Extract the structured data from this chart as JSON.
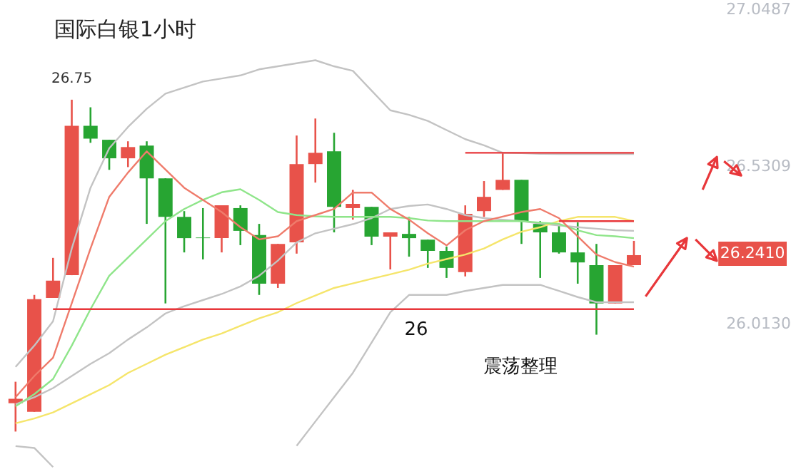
{
  "chart_data": {
    "type": "candlestick",
    "title": "国际白银1小时",
    "categories": [
      null,
      null,
      null,
      null,
      null,
      null,
      null,
      null,
      null,
      null,
      null,
      null,
      null,
      null,
      null,
      null,
      null,
      null,
      null,
      null,
      null,
      null,
      null,
      null,
      null,
      null,
      null,
      null,
      null,
      null,
      null,
      null,
      null,
      null
    ],
    "ohlc": [
      [
        25.75,
        25.821,
        25.657,
        25.765
      ],
      [
        25.722,
        26.107,
        25.722,
        26.093
      ],
      [
        26.097,
        26.229,
        26.097,
        26.154
      ],
      [
        26.172,
        26.75,
        26.172,
        26.664
      ],
      [
        26.664,
        26.725,
        26.608,
        26.622
      ],
      [
        26.618,
        26.618,
        26.519,
        26.557
      ],
      [
        26.557,
        26.613,
        26.528,
        26.594
      ],
      [
        26.599,
        26.613,
        26.341,
        26.491
      ],
      [
        26.491,
        26.491,
        26.079,
        26.364
      ],
      [
        26.364,
        26.383,
        26.247,
        26.294
      ],
      [
        26.296,
        26.393,
        26.224,
        26.294
      ],
      [
        26.294,
        26.402,
        26.247,
        26.402
      ],
      [
        26.393,
        26.402,
        26.271,
        26.318
      ],
      [
        26.304,
        26.341,
        26.107,
        26.144
      ],
      [
        26.144,
        26.275,
        26.13,
        26.275
      ],
      [
        26.28,
        26.632,
        26.243,
        26.538
      ],
      [
        26.538,
        26.688,
        26.477,
        26.575
      ],
      [
        26.58,
        26.641,
        26.313,
        26.397
      ],
      [
        26.393,
        26.453,
        26.355,
        26.407
      ],
      [
        26.397,
        26.397,
        26.271,
        26.299
      ],
      [
        26.299,
        26.313,
        26.191,
        26.313
      ],
      [
        26.308,
        26.364,
        26.233,
        26.294
      ],
      [
        26.289,
        26.289,
        26.196,
        26.252
      ],
      [
        26.252,
        26.266,
        26.163,
        26.196
      ],
      [
        26.182,
        26.402,
        26.168,
        26.374
      ],
      [
        26.383,
        26.482,
        26.364,
        26.43
      ],
      [
        26.453,
        26.575,
        26.453,
        26.486
      ],
      [
        26.486,
        26.486,
        26.275,
        26.35
      ],
      [
        26.341,
        26.35,
        26.163,
        26.313
      ],
      [
        26.313,
        26.336,
        26.243,
        26.247
      ],
      [
        26.247,
        26.346,
        26.144,
        26.214
      ],
      [
        26.205,
        26.275,
        25.976,
        26.079
      ],
      [
        26.079,
        26.205,
        26.079,
        26.205
      ],
      [
        26.205,
        26.285,
        26.205,
        26.238
      ]
    ],
    "colors": [
      "#e8524a",
      "#e8524a",
      "#e8524a",
      "#e8524a",
      "#27a532",
      "#27a532",
      "#e8524a",
      "#27a532",
      "#27a532",
      "#27a532",
      "#27a532",
      "#e8524a",
      "#27a532",
      "#27a532",
      "#e8524a",
      "#e8524a",
      "#e8524a",
      "#27a532",
      "#e8524a",
      "#27a532",
      "#e8524a",
      "#27a532",
      "#27a532",
      "#27a532",
      "#e8524a",
      "#e8524a",
      "#e8524a",
      "#27a532",
      "#27a532",
      "#27a532",
      "#27a532",
      "#27a532",
      "#e8524a",
      "#e8524a"
    ],
    "series": [
      {
        "type": "line",
        "color": "#c3c3c3",
        "values": [
          25.87,
          25.94,
          26.02,
          26.26,
          26.46,
          26.59,
          26.66,
          26.72,
          26.77,
          26.79,
          26.81,
          26.82,
          26.83,
          26.85,
          26.86,
          26.87,
          26.88,
          26.86,
          26.845,
          26.78,
          26.715,
          26.7,
          26.68,
          26.65,
          26.62,
          26.6,
          26.575,
          26.574,
          26.572,
          26.571,
          26.571,
          26.571,
          26.571,
          26.571
        ]
      },
      {
        "type": "line",
        "color": "#c3c3c3",
        "values": [
          25.747,
          25.77,
          25.8,
          25.84,
          25.88,
          25.915,
          25.96,
          26.0,
          26.046,
          26.07,
          26.09,
          26.11,
          26.135,
          26.17,
          26.22,
          26.28,
          26.31,
          26.325,
          26.34,
          26.36,
          26.39,
          26.4,
          26.405,
          26.39,
          26.37,
          26.36,
          26.355,
          26.35,
          26.342,
          26.336,
          26.33,
          26.325,
          26.32,
          26.318
        ]
      },
      {
        "type": "line",
        "color": "#c3c3c3",
        "values": [
          25.609,
          25.603,
          25.54,
          null,
          null,
          null,
          null,
          null,
          null,
          null,
          null,
          null,
          null,
          null,
          null,
          25.61,
          25.69,
          25.77,
          25.85,
          25.95,
          26.05,
          26.107,
          26.107,
          26.107,
          26.12,
          26.13,
          26.14,
          26.14,
          26.14,
          26.12,
          26.1,
          26.083,
          26.083,
          26.083
        ]
      },
      {
        "type": "line",
        "color": "#f5e56b",
        "values": [
          25.684,
          25.7,
          25.72,
          25.75,
          25.78,
          25.81,
          25.85,
          25.88,
          25.91,
          25.935,
          25.96,
          25.98,
          26.005,
          26.03,
          26.05,
          26.08,
          26.105,
          26.13,
          26.145,
          26.16,
          26.175,
          26.19,
          26.21,
          26.225,
          26.24,
          26.26,
          26.29,
          26.315,
          26.33,
          26.35,
          26.364,
          26.364,
          26.364,
          26.35
        ]
      },
      {
        "type": "line",
        "color": "#8fe58a",
        "values": [
          25.74,
          25.78,
          25.83,
          25.94,
          26.06,
          26.17,
          26.23,
          26.29,
          26.35,
          26.39,
          26.42,
          26.445,
          26.455,
          26.42,
          26.38,
          26.37,
          26.366,
          26.364,
          26.364,
          26.364,
          26.364,
          26.36,
          26.352,
          26.35,
          26.35,
          26.35,
          26.35,
          26.35,
          26.345,
          26.341,
          26.32,
          26.304,
          26.3,
          26.294
        ]
      },
      {
        "type": "line",
        "color": "#ef7b6b",
        "values": [
          25.77,
          25.84,
          25.9,
          26.08,
          26.26,
          26.43,
          26.51,
          26.58,
          26.52,
          26.46,
          26.42,
          26.38,
          26.33,
          26.29,
          26.3,
          26.35,
          26.37,
          26.39,
          26.444,
          26.444,
          26.39,
          26.355,
          26.31,
          26.27,
          26.32,
          26.35,
          26.365,
          26.38,
          26.39,
          26.36,
          26.3,
          26.24,
          26.215,
          26.2
        ]
      },
      {
        "type": "line",
        "color": "#e8373a",
        "values": [
          null,
          null,
          null,
          null,
          null,
          null,
          null,
          null,
          null,
          null,
          null,
          null,
          null,
          null,
          null,
          null,
          null,
          null,
          null,
          null,
          null,
          null,
          null,
          null,
          26.575,
          26.575,
          26.575,
          26.575,
          26.575,
          26.575,
          26.575,
          26.575,
          26.575,
          26.575
        ]
      },
      {
        "type": "line",
        "color": "#e8373a",
        "values": [
          null,
          null,
          null,
          null,
          null,
          null,
          null,
          null,
          null,
          null,
          null,
          null,
          null,
          null,
          null,
          null,
          null,
          null,
          null,
          null,
          null,
          null,
          null,
          null,
          null,
          null,
          null,
          null,
          null,
          26.35,
          26.35,
          26.35,
          26.35,
          26.35
        ]
      },
      {
        "type": "line",
        "color": "#e8373a",
        "values": [
          null,
          null,
          26.06,
          26.06,
          26.06,
          26.06,
          26.06,
          26.06,
          26.06,
          26.06,
          26.06,
          26.06,
          26.06,
          26.06,
          26.06,
          26.06,
          26.06,
          26.06,
          26.06,
          26.06,
          26.06,
          26.06,
          26.06,
          26.06,
          26.06,
          26.06,
          26.06,
          26.06,
          26.06,
          26.06,
          26.06,
          26.06,
          26.06,
          26.06
        ]
      }
    ],
    "ylim": [
      25.535,
      27.077
    ],
    "yticks": [
      27.0487,
      26.5309,
      {
        "value": 26.013,
        "label": "26.0130"
      }
    ],
    "tick_labels": "y",
    "grid": false,
    "annotations": [
      {
        "text": "26.75",
        "y": 26.75
      },
      "26.2410",
      "26",
      "震荡整理"
    ]
  }
}
